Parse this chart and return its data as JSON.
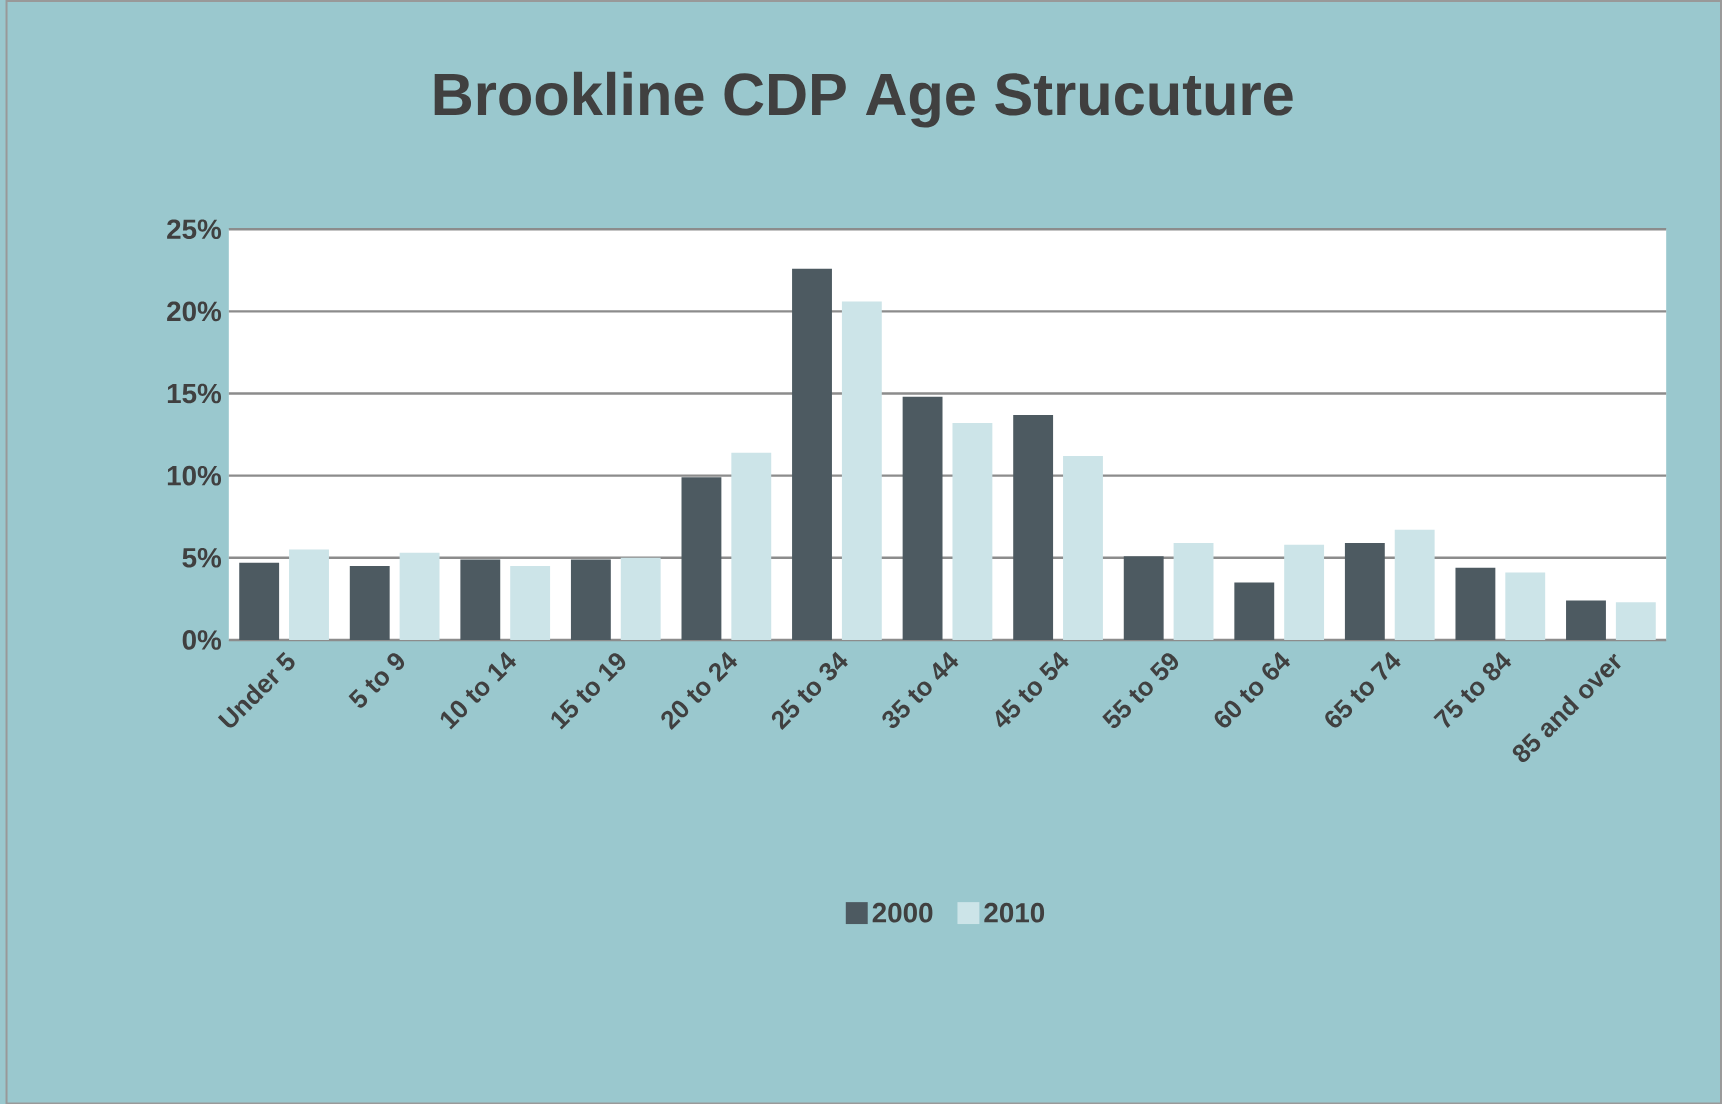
{
  "chart_data": {
    "type": "bar",
    "title": "Brookline CDP Age Strucuture",
    "categories": [
      "Under 5",
      "5 to 9",
      "10 to 14",
      "15 to 19",
      "20 to 24",
      "25 to 34",
      "35 to 44",
      "45 to 54",
      "55 to 59",
      "60 to 64",
      "65 to 74",
      "75 to 84",
      "85 and over"
    ],
    "series": [
      {
        "name": "2000",
        "color": "#4d5a61",
        "values": [
          4.7,
          4.5,
          4.9,
          4.9,
          9.9,
          22.6,
          14.8,
          13.7,
          5.1,
          3.5,
          5.9,
          4.4,
          2.4
        ]
      },
      {
        "name": "2010",
        "color": "#cce4e8",
        "values": [
          5.5,
          5.3,
          4.5,
          5.0,
          11.4,
          20.6,
          13.2,
          11.2,
          5.9,
          5.8,
          6.7,
          4.1,
          2.3
        ]
      }
    ],
    "ylim": [
      0,
      25
    ],
    "yticks": [
      {
        "value": 0,
        "label": "0%"
      },
      {
        "value": 5,
        "label": "5%"
      },
      {
        "value": 10,
        "label": "10%"
      },
      {
        "value": 15,
        "label": "15%"
      },
      {
        "value": 20,
        "label": "20%"
      },
      {
        "value": 25,
        "label": "25%"
      }
    ],
    "grid": "y",
    "legend": "bottom"
  }
}
